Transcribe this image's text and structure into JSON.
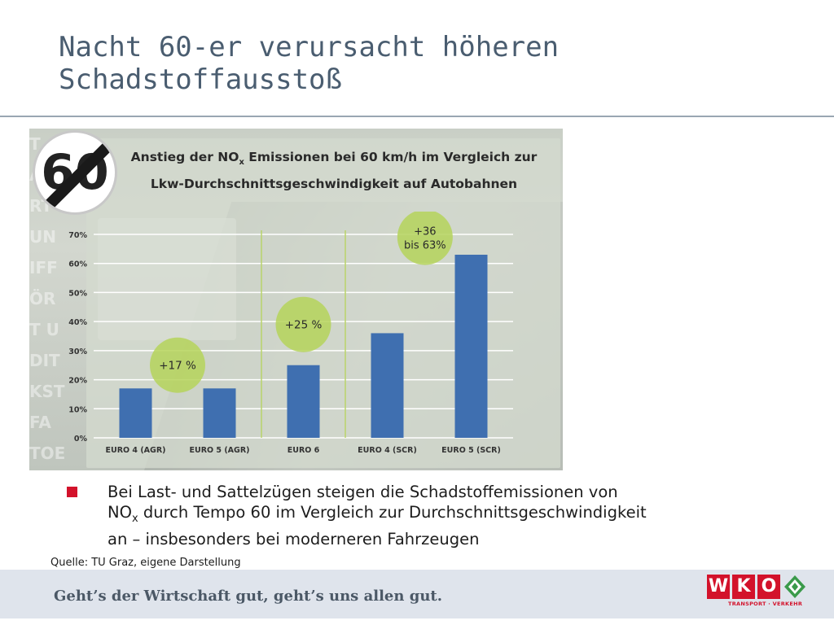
{
  "slide": {
    "title_line1": "Nacht 60-er verursacht höheren",
    "title_line2": "Schadstoffausstoß"
  },
  "sign": {
    "number": "60"
  },
  "chart_title": {
    "line1_pre": "Anstieg der NO",
    "line1_sub": "x",
    "line1_post": " Emissionen bei 60 km/h im Vergleich zur",
    "line2": "Lkw-Durchschnittsgeschwindigkeit auf Autobahnen"
  },
  "chart_data": {
    "type": "bar",
    "categories": [
      "EURO 4 (AGR)",
      "EURO 5 (AGR)",
      "EURO 6",
      "EURO 4 (SCR)",
      "EURO 5 (SCR)"
    ],
    "values": [
      17,
      17,
      25,
      36,
      63
    ],
    "unit": "%",
    "ylim": [
      0,
      70
    ],
    "yticks": [
      "0%",
      "10%",
      "20%",
      "30%",
      "40%",
      "50%",
      "60%",
      "70%"
    ],
    "grid": true,
    "annotations": [
      {
        "text": "+17 %",
        "near_group": "EURO 4 (AGR) – EURO 5 (AGR)",
        "level": 25
      },
      {
        "text": "+25 %",
        "near_group": "EURO 6",
        "level": 39
      },
      {
        "text_line1": "+36",
        "text_line2": "bis 63%",
        "near_group": "EURO 4 (SCR) – EURO 5 (SCR)",
        "level": 69
      }
    ],
    "colors": {
      "bar": "#3f6fb0",
      "bubble": "#b5d45a",
      "grid": "#ffffff",
      "separator": "#b9d36a"
    }
  },
  "bullet": {
    "line1": "Bei Last- und Sattelzügen steigen die Schadstoffemissionen von",
    "line2_pre": "NO",
    "line2_sub": "x",
    "line2_post": " durch Tempo 60 im Vergleich zur Durchschnittsgeschwindigkeit",
    "line3": "an – insbesonders bei moderneren Fahrzeugen"
  },
  "source": "Quelle: TU Graz, eigene Darstellung",
  "footer": {
    "slogan": "Geht’s der Wirtschaft gut, geht’s uns allen gut.",
    "logo_letters": [
      "W",
      "K",
      "O"
    ],
    "logo_sub": "TRANSPORT · VERKEHR"
  },
  "colors": {
    "title": "#4a5d70",
    "accent_red": "#d3122b",
    "footer_bg": "#dfe4ec"
  }
}
